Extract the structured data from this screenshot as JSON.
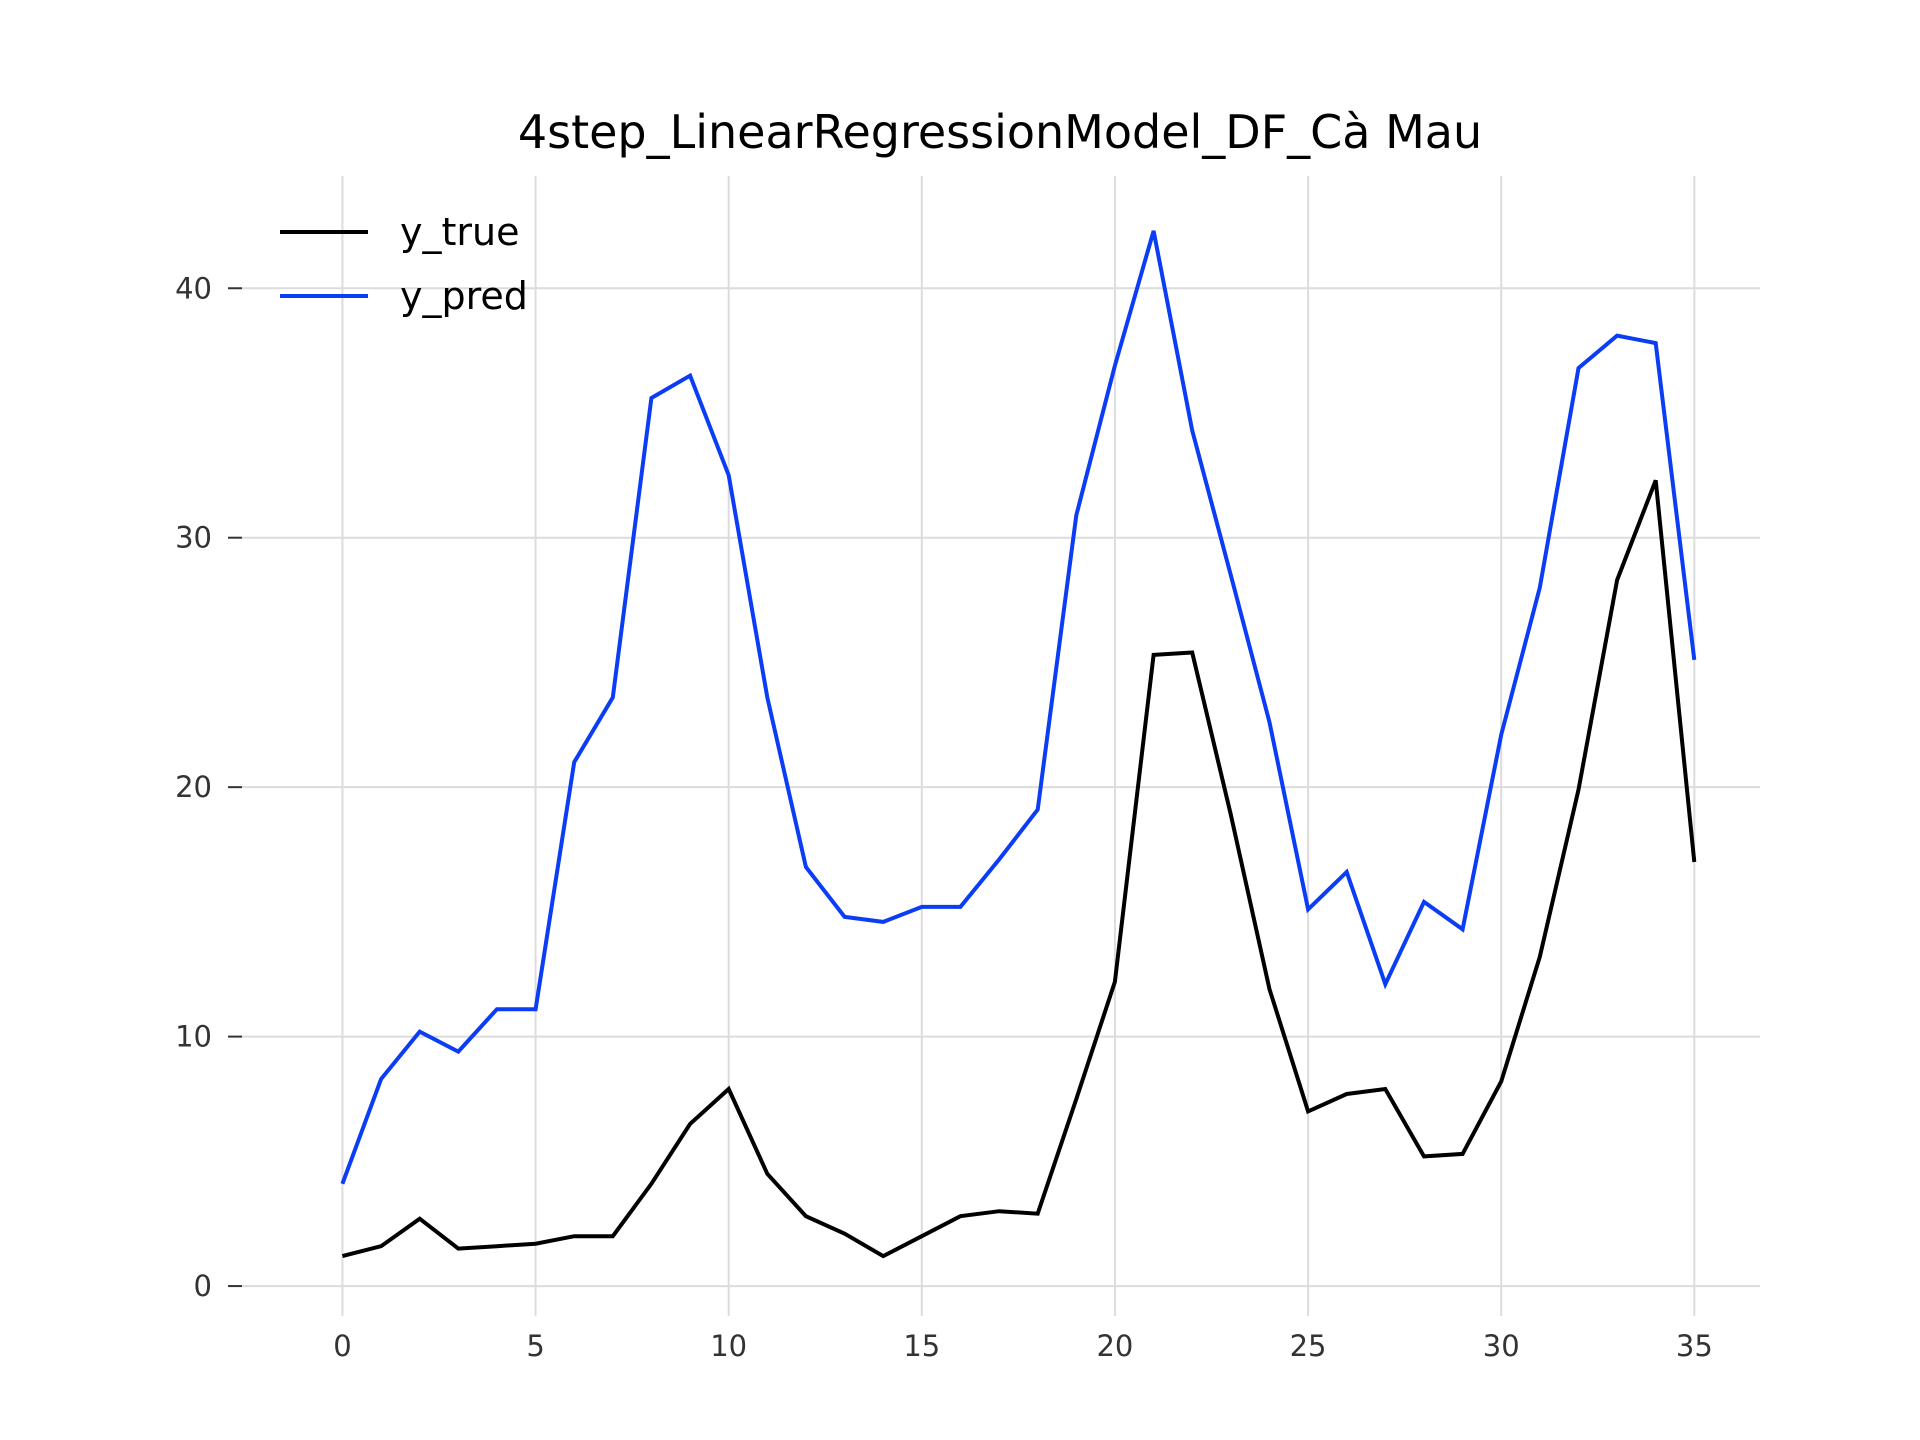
{
  "chart_data": {
    "type": "line",
    "title": "4step_LinearRegressionModel_DF_Cà Mau",
    "xlabel": "",
    "ylabel": "",
    "x": [
      0,
      1,
      2,
      3,
      4,
      5,
      6,
      7,
      8,
      9,
      10,
      11,
      12,
      13,
      14,
      15,
      16,
      17,
      18,
      19,
      20,
      21,
      22,
      23,
      24,
      25,
      26,
      27,
      28,
      29,
      30,
      31,
      32,
      33,
      34,
      35
    ],
    "xlim": [
      -2.6,
      36.7
    ],
    "ylim": [
      -1.2,
      44.5
    ],
    "xticks": [
      0,
      5,
      10,
      15,
      20,
      25,
      30,
      35
    ],
    "xtick_labels": [
      "0",
      "5",
      "10",
      "15",
      "20",
      "25",
      "30",
      "35"
    ],
    "yticks": [
      0,
      10,
      20,
      30,
      40
    ],
    "ytick_labels": [
      "0",
      "10",
      "20",
      "30",
      "40"
    ],
    "grid": true,
    "legend_position": "top-left",
    "series": [
      {
        "name": "y_true",
        "color": "#000000",
        "values": [
          1.2,
          1.6,
          2.7,
          1.5,
          1.6,
          1.7,
          2.0,
          2.0,
          4.1,
          6.5,
          7.9,
          4.5,
          2.8,
          2.1,
          1.2,
          2.0,
          2.8,
          3.0,
          2.9,
          7.5,
          12.2,
          25.3,
          25.4,
          18.9,
          11.9,
          7.0,
          7.7,
          7.9,
          5.2,
          5.3,
          8.2,
          13.2,
          19.9,
          28.3,
          32.3,
          17.0
        ]
      },
      {
        "name": "y_pred",
        "color": "#0b3df5",
        "values": [
          4.1,
          8.3,
          10.2,
          9.4,
          11.1,
          11.1,
          21.0,
          23.6,
          35.6,
          36.5,
          32.5,
          23.6,
          16.8,
          14.8,
          14.6,
          15.2,
          15.2,
          17.1,
          19.1,
          30.9,
          36.9,
          42.3,
          34.3,
          28.5,
          22.6,
          15.1,
          16.6,
          12.1,
          15.4,
          14.3,
          22.1,
          28.0,
          36.8,
          38.1,
          37.8,
          25.1
        ]
      }
    ]
  }
}
